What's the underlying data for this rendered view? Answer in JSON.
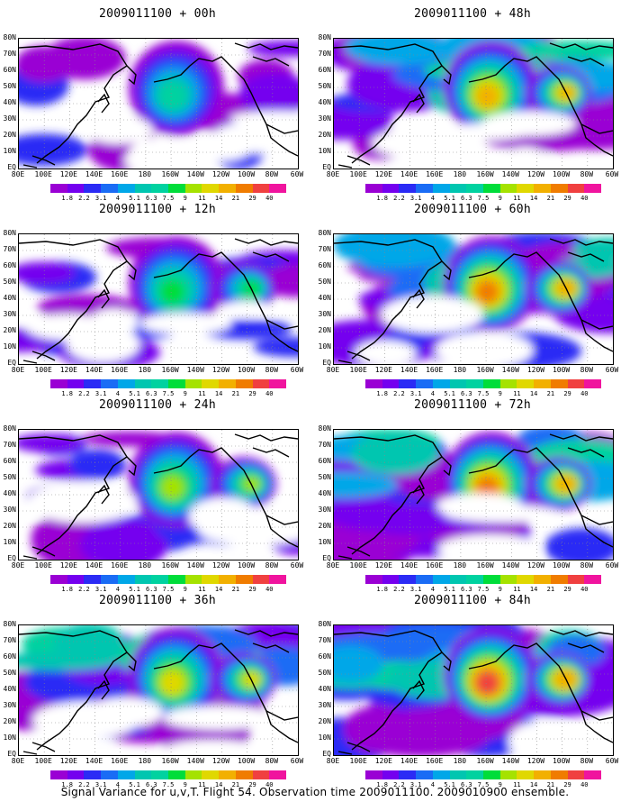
{
  "colorbar": {
    "levels": [
      "1.8",
      "2.2",
      "3.1",
      "4",
      "5.1",
      "6.3",
      "7.5",
      "9",
      "11",
      "14",
      "21",
      "29",
      "40"
    ],
    "colors": [
      "#9a00d4",
      "#7400ef",
      "#2b2bf5",
      "#1a6cf5",
      "#00a7e8",
      "#00c6b0",
      "#00d2a0",
      "#00dd3a",
      "#a5e200",
      "#e0d800",
      "#f2b000",
      "#f07c00",
      "#f04040",
      "#f0149e"
    ]
  },
  "lat_labels": [
    "80N",
    "70N",
    "60N",
    "50N",
    "40N",
    "30N",
    "20N",
    "10N",
    "EQ"
  ],
  "lon_labels": [
    "80E",
    "100E",
    "120E",
    "140E",
    "160E",
    "180",
    "160W",
    "140W",
    "120W",
    "100W",
    "80W",
    "60W"
  ],
  "panels": [
    {
      "title": "2009011100 + 00h",
      "intensity": 0.35
    },
    {
      "title": "2009011100 + 48h",
      "intensity": 0.75
    },
    {
      "title": "2009011100 + 12h",
      "intensity": 0.45
    },
    {
      "title": "2009011100 + 60h",
      "intensity": 0.85
    },
    {
      "title": "2009011100 + 24h",
      "intensity": 0.55
    },
    {
      "title": "2009011100 + 72h",
      "intensity": 0.9
    },
    {
      "title": "2009011100 + 36h",
      "intensity": 0.65
    },
    {
      "title": "2009011100 + 84h",
      "intensity": 0.95
    }
  ],
  "footer": "Signal Variance for u,v,T. Flight 54. Observation time 2009011100. 2009010900 ensemble."
}
